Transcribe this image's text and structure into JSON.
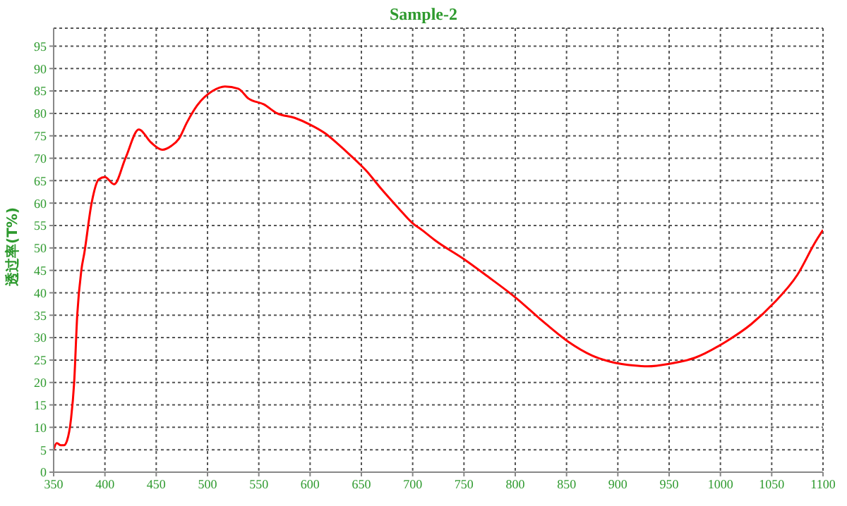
{
  "chart_data": {
    "type": "line",
    "title": "Sample-2",
    "ylabel": "透过率(T%)",
    "x": [
      350,
      353,
      357,
      360,
      363,
      367,
      370,
      373,
      377,
      380,
      387,
      394,
      400,
      409,
      420,
      433,
      445,
      456,
      465,
      472,
      480,
      490,
      505,
      517,
      530,
      540,
      555,
      568,
      585,
      600,
      615,
      627,
      640,
      654,
      670,
      686,
      700,
      709,
      723,
      750,
      771,
      801,
      825,
      851,
      875,
      897,
      915,
      929,
      951,
      975,
      1006,
      1030,
      1052,
      1075,
      1093,
      1100
    ],
    "series": [
      {
        "color": "#ff0000",
        "values": [
          5,
          6.5,
          6,
          6,
          7,
          12,
          20,
          35,
          45,
          49,
          60,
          65.3,
          65.8,
          64.2,
          70,
          76.4,
          73.5,
          71.9,
          72.8,
          74.3,
          78,
          81.8,
          85,
          86,
          85.5,
          83.3,
          82,
          80,
          79,
          77.5,
          75.5,
          73.2,
          70.5,
          67.4,
          63,
          58.9,
          55.5,
          54,
          51.5,
          47.5,
          44,
          38.8,
          34,
          29.2,
          26,
          24.4,
          23.8,
          23.6,
          24.2,
          25.5,
          29.2,
          33,
          37.7,
          44,
          51.5,
          54
        ]
      }
    ],
    "xlim": [
      350,
      1100
    ],
    "xticks": [
      350,
      400,
      450,
      500,
      550,
      600,
      650,
      700,
      750,
      800,
      850,
      900,
      950,
      1000,
      1050,
      1100
    ],
    "ylim": [
      0,
      99
    ],
    "yticks": [
      0,
      5,
      10,
      15,
      20,
      25,
      30,
      35,
      40,
      45,
      50,
      55,
      60,
      65,
      70,
      75,
      80,
      85,
      90,
      95
    ],
    "grid": true,
    "line_style": "solid",
    "marker": "none",
    "legend": false
  }
}
